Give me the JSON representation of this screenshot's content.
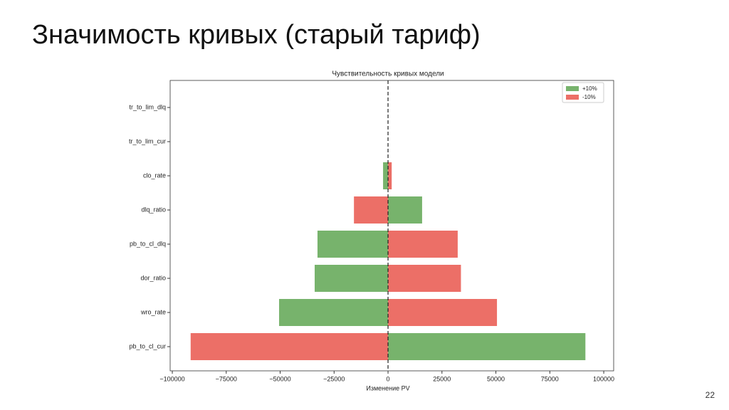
{
  "title": "Значимость кривых (старый тариф)",
  "page_number": "22",
  "chart_data": {
    "type": "barh",
    "title": "Чувствительность кривых модели",
    "xlabel": "Изменение PV",
    "categories": [
      "pb_to_cl_cur",
      "wro_rate",
      "dor_ratio",
      "pb_to_cl_dlq",
      "dlq_ratio",
      "clo_rate",
      "tr_to_lim_cur",
      "tr_to_lim_dlq"
    ],
    "series": [
      {
        "name": "+10%",
        "color": "#77b36c",
        "values": [
          91500,
          -50500,
          -34000,
          -32700,
          15800,
          -2300,
          0,
          0
        ]
      },
      {
        "name": "-10%",
        "color": "#ec6f67",
        "values": [
          -91500,
          50500,
          33800,
          32300,
          -15800,
          1700,
          0,
          0
        ]
      }
    ],
    "xlim": [
      -101000,
      104600
    ],
    "xticks": [
      {
        "value": -100000,
        "label": "−100000"
      },
      {
        "value": -75000,
        "label": "−75000"
      },
      {
        "value": -50000,
        "label": "−50000"
      },
      {
        "value": -25000,
        "label": "−25000"
      },
      0,
      25000,
      50000,
      75000,
      100000
    ],
    "legend": "upper right",
    "zero_line": true
  }
}
